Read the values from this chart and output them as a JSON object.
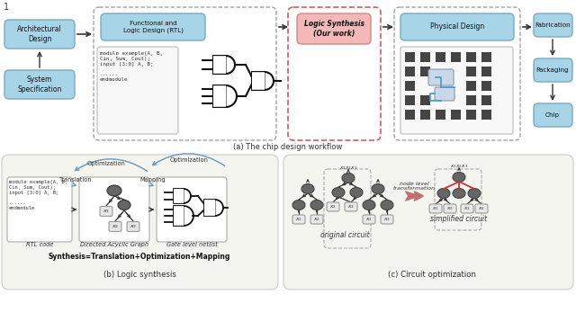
{
  "fig_width": 6.4,
  "fig_height": 3.57,
  "bg_color": "#ffffff",
  "light_blue": "#A8D4E8",
  "light_pink": "#F4B8B8",
  "gray_box": "#F0F0F0",
  "node_color": "#666666",
  "node_light": "#AAAAAA",
  "dashed_border": "#888888",
  "pink_border": "#D06060",
  "arrow_color": "#222222",
  "blue_arrow": "#6699BB",
  "blue_line": "#5599CC",
  "red_line": "#CC3333",
  "caption_a": "(a) The chip design workflow",
  "caption_b": "(b) Logic synthesis",
  "caption_c": "(c) Circuit optimization",
  "box_arch": "Architectural\nDesign",
  "box_sys": "System\nSpecification",
  "box_rtl": "Functional and\nLogic Design (RTL)",
  "box_ls": "Logic Synthesis\n(Our work)",
  "box_pd": "Physical Design",
  "box_fab": "Fabrication",
  "box_pack": "Packaging",
  "box_chip": "Chip",
  "rtl_code1": "module example(A, B,\nCin, Sum, Cout);\ninput [3:0] A, B;\n\n......\nendmodule",
  "label_rtl": "RTL code",
  "label_dag": "Directed Acyclic Graph",
  "label_netlist": "Gate level netlist",
  "label_synth": "Synthesis=Translation+Optimization+Mapping",
  "label_orig": "original circuit",
  "label_simp": "simplified circuit",
  "label_node": "node level\ntransformation",
  "label_opt1": "Optimization",
  "label_opt2": "Optimization",
  "label_trans": "Translation",
  "label_map": "Mapping",
  "x1x2x3": "$x_1x_2x_3$",
  "x1": "$x_1$",
  "x2": "$x_2$",
  "x3": "$x_3$"
}
